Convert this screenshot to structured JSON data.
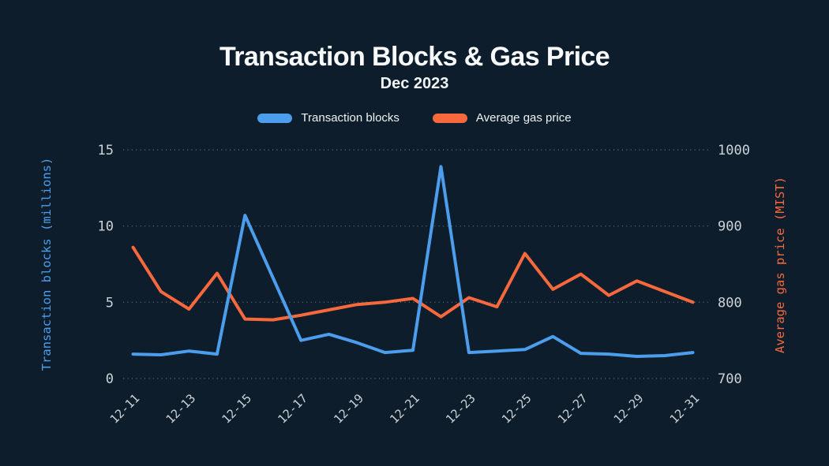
{
  "header": {
    "title": "Transaction Blocks & Gas Price",
    "subtitle": "Dec 2023"
  },
  "legend": {
    "items": [
      {
        "label": "Transaction blocks",
        "color": "#4C9EED"
      },
      {
        "label": "Average gas price",
        "color": "#F7693D"
      }
    ]
  },
  "colors": {
    "background": "#0d1d2b",
    "blue_series": "#4C9EED",
    "orange_series": "#F7693D",
    "tick_text": "#ccd3d8",
    "gridline": "#85939d",
    "title_text": "#f8fafb"
  },
  "chart_data": {
    "type": "line",
    "title": "Transaction Blocks & Gas Price",
    "subtitle": "Dec 2023",
    "x": [
      "12-11",
      "12-12",
      "12-13",
      "12-14",
      "12-15",
      "12-16",
      "12-17",
      "12-18",
      "12-19",
      "12-20",
      "12-21",
      "12-22",
      "12-23",
      "12-24",
      "12-25",
      "12-26",
      "12-27",
      "12-28",
      "12-29",
      "12-30",
      "12-31"
    ],
    "x_tick_labels": [
      "12-11",
      "12-13",
      "12-15",
      "12-17",
      "12-19",
      "12-21",
      "12-23",
      "12-25",
      "12-27",
      "12-29",
      "12-31"
    ],
    "series": [
      {
        "name": "Transaction blocks",
        "axis": "left",
        "color": "#4C9EED",
        "values": [
          1.6,
          1.55,
          1.8,
          1.6,
          10.7,
          6.6,
          2.5,
          2.9,
          2.35,
          1.7,
          1.85,
          13.9,
          1.7,
          1.8,
          1.9,
          2.75,
          1.65,
          1.6,
          1.45,
          1.5,
          1.7
        ]
      },
      {
        "name": "Average gas price",
        "axis": "right",
        "color": "#F7693D",
        "values": [
          872,
          814,
          791,
          838,
          778,
          777,
          783,
          790,
          797,
          800,
          805,
          781,
          806,
          794,
          864,
          817,
          837,
          809,
          828,
          814,
          800
        ]
      }
    ],
    "left_axis": {
      "label": "Transaction blocks (millions)",
      "ticks": [
        0,
        5,
        10,
        15
      ],
      "range": [
        0,
        15
      ],
      "color": "#4C9EED"
    },
    "right_axis": {
      "label": "Average gas price (MIST)",
      "ticks": [
        700,
        800,
        900,
        1000
      ],
      "range": [
        700,
        1000
      ],
      "color": "#F7693D"
    },
    "grid": "horizontal-dotted",
    "legend_position": "top-center"
  }
}
